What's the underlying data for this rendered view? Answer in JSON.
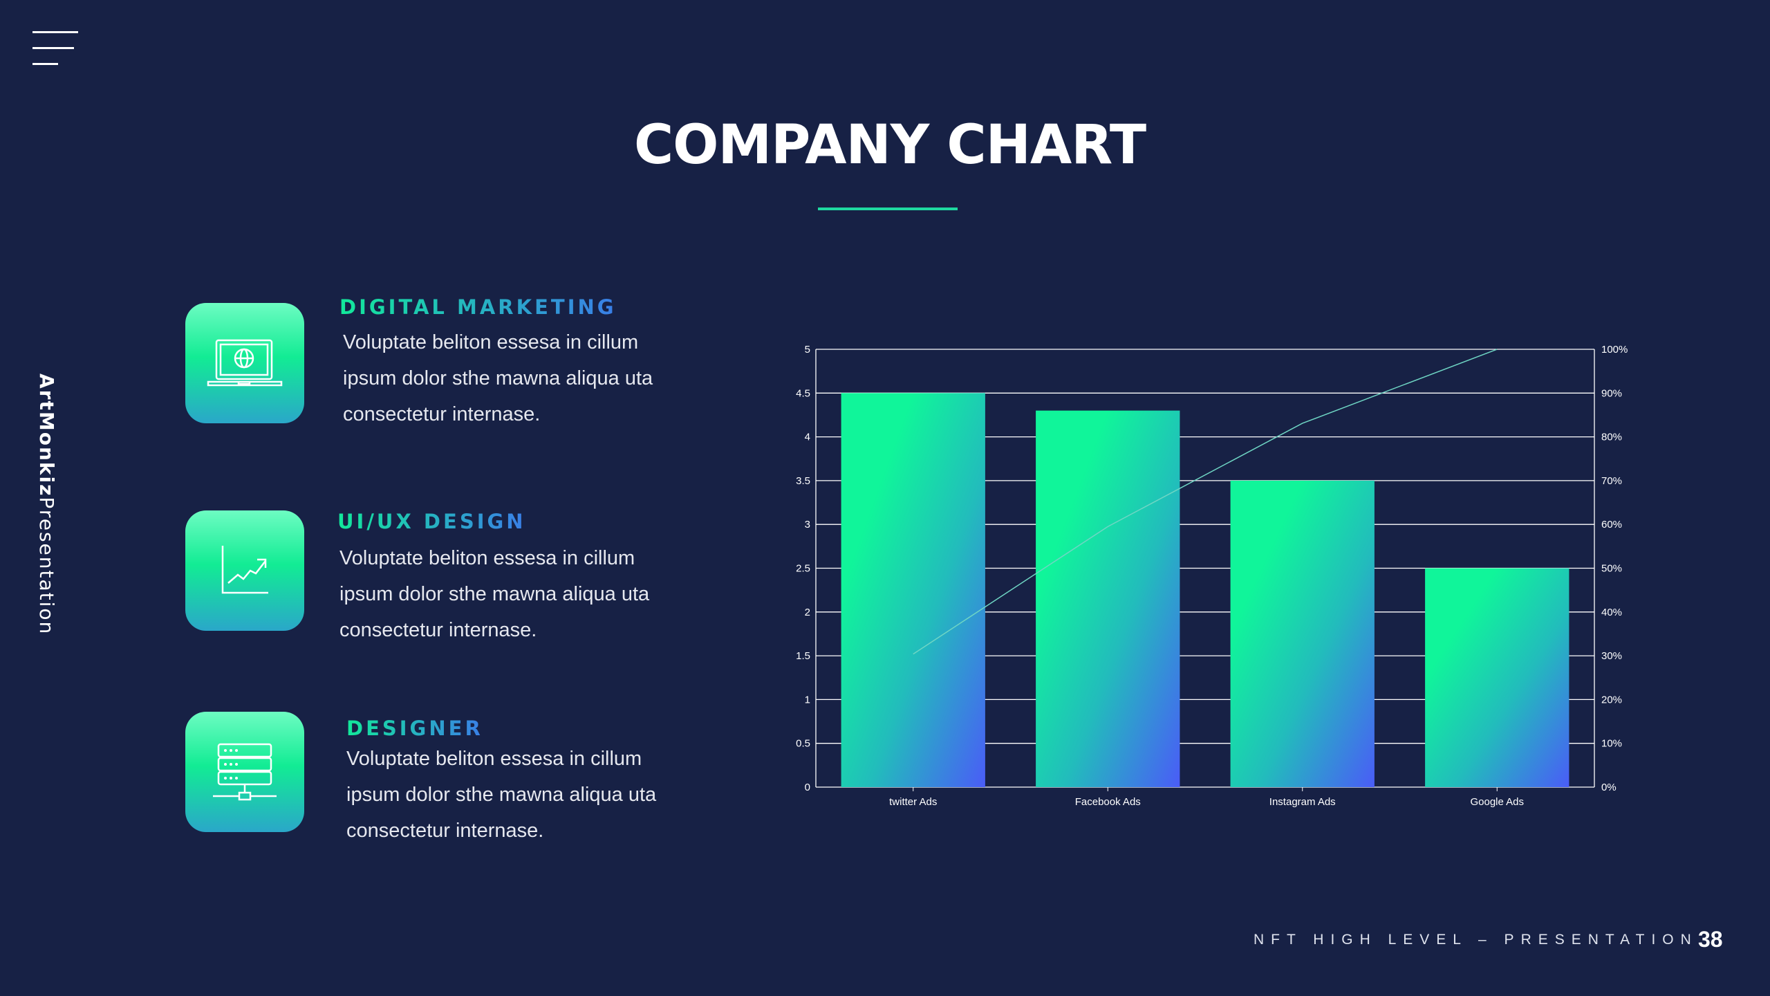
{
  "menu_icon": "hamburger-icon",
  "title": "COMPANY CHART",
  "brand": {
    "bold": "ArtMonkiz",
    "regular": "Presentation"
  },
  "items": [
    {
      "icon": "laptop-globe-icon",
      "heading": "DIGITAL MARKETING",
      "lines": [
        "Voluptate beliton essesa in cillum",
        "ipsum dolor sthe mawna aliqua uta",
        "consectetur internase."
      ]
    },
    {
      "icon": "line-chart-icon",
      "heading": "UI/UX DESIGN",
      "lines": [
        "Voluptate beliton essesa in cillum",
        "ipsum dolor sthe mawna aliqua uta",
        "consectetur internase."
      ]
    },
    {
      "icon": "server-network-icon",
      "heading": "DESIGNER",
      "lines": [
        "Voluptate beliton essesa in cillum",
        "ipsum dolor sthe mawna aliqua uta",
        "consectetur internase."
      ]
    }
  ],
  "footer": {
    "text": "NFT HIGH LEVEL – PRESENTATION",
    "page": "38"
  },
  "colors": {
    "background": "#172145",
    "accent": "#1fd8a0",
    "bar_top": "#10f59a",
    "bar_bottom": "#4a5cf7",
    "line": "#6fd6c4"
  },
  "chart_data": {
    "type": "bar",
    "categories": [
      "twitter Ads",
      "Facebook Ads",
      "Instagram Ads",
      "Google Ads"
    ],
    "series": [
      {
        "type": "bar",
        "axis": "left",
        "values": [
          4.5,
          4.3,
          3.5,
          2.5
        ]
      },
      {
        "type": "line",
        "axis": "right",
        "values": [
          30.4,
          59.5,
          83.1,
          100
        ]
      }
    ],
    "ylim": [
      0,
      5
    ],
    "yticks": [
      "0",
      "0.5",
      "1",
      "1.5",
      "2",
      "2.5",
      "3",
      "3.5",
      "4",
      "4.5",
      "5"
    ],
    "y2lim": [
      0,
      100
    ],
    "y2ticks": [
      "0%",
      "10%",
      "20%",
      "30%",
      "40%",
      "50%",
      "60%",
      "70%",
      "80%",
      "90%",
      "100%"
    ],
    "grid": true,
    "legend": "none"
  }
}
